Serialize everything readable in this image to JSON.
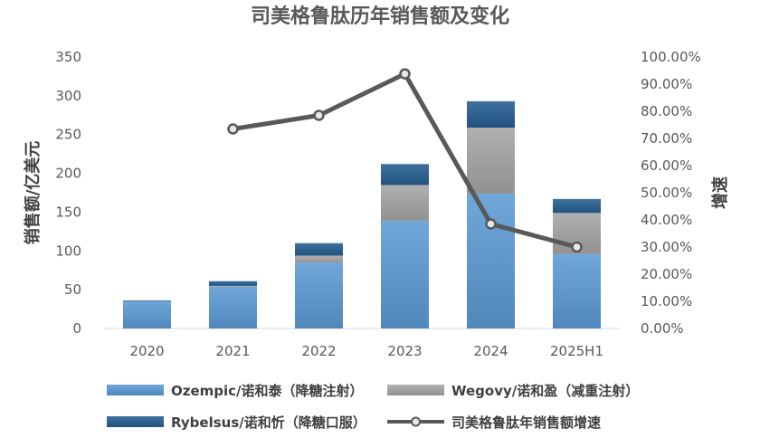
{
  "chart_data": {
    "type": "bar",
    "title": "司美格鲁肽历年销售额及变化",
    "ylabel": "销售额/亿美元",
    "y2label": "增速",
    "categories": [
      "2020",
      "2021",
      "2022",
      "2023",
      "2024",
      "2025H1"
    ],
    "ylim": [
      0,
      350
    ],
    "yticks": [
      "0",
      "50",
      "100",
      "150",
      "200",
      "250",
      "300",
      "350"
    ],
    "y2lim": [
      0,
      100
    ],
    "y2ticks": [
      "0.00%",
      "10.00%",
      "20.00%",
      "30.00%",
      "40.00%",
      "50.00%",
      "60.00%",
      "70.00%",
      "80.00%",
      "90.00%",
      "100.00%"
    ],
    "series": [
      {
        "name": "Ozempic/诺和泰（降糖注射）",
        "kind": "stacked-bar",
        "color": "#5B9BD5",
        "values": [
          35,
          54,
          85,
          139,
          174,
          96
        ]
      },
      {
        "name": "Wegovy/诺和盈（减重注射）",
        "kind": "stacked-bar",
        "color": "#A5A5A5",
        "values": [
          0,
          1,
          9,
          46,
          85,
          53
        ]
      },
      {
        "name": "Rybelsus/诺和忻（降糖口服）",
        "kind": "stacked-bar",
        "color": "#255E91",
        "values": [
          1,
          6,
          16,
          27,
          34,
          18
        ]
      },
      {
        "name": "司美格鲁肽年销售额增速",
        "kind": "line",
        "axis": "right",
        "color": "#595959",
        "values": [
          null,
          73.5,
          78.5,
          93.8,
          38.5,
          30.0
        ]
      }
    ],
    "grid": false,
    "legend": "bottom"
  }
}
